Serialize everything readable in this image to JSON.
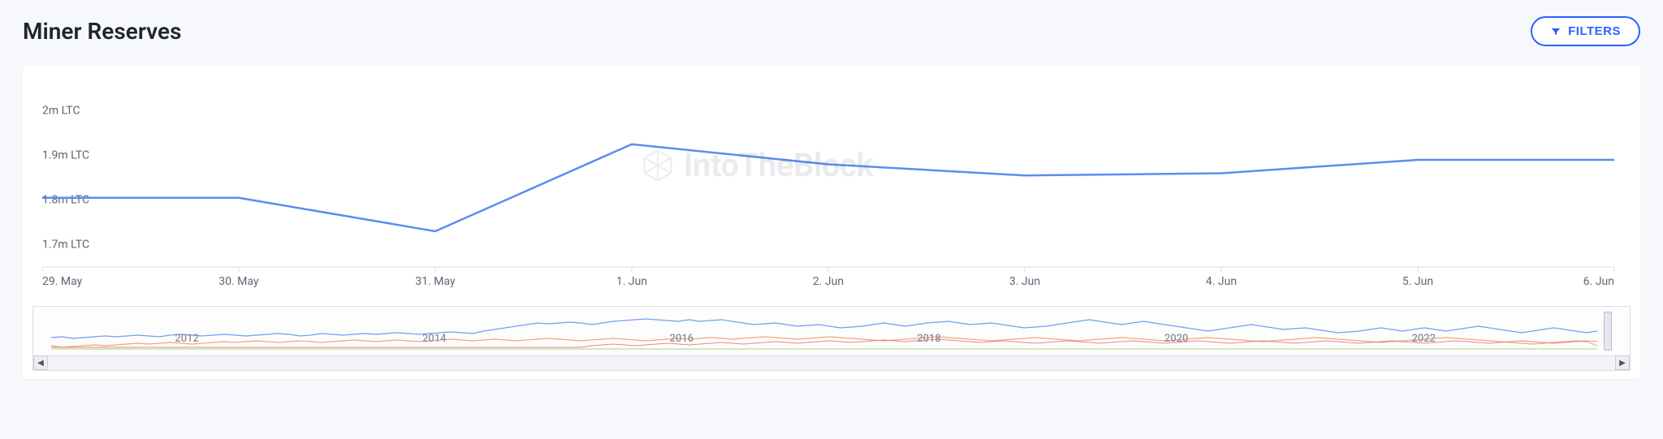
{
  "header": {
    "title": "Miner Reserves",
    "filters_label": "FILTERS"
  },
  "watermark": {
    "text": "IntoTheBlock"
  },
  "main_chart": {
    "type": "line",
    "background_color": "#ffffff",
    "grid_color": "#dcdfe6",
    "line_color": "#5b8def",
    "line_width": 2.5,
    "x_categories": [
      "29. May",
      "30. May",
      "31. May",
      "1. Jun",
      "2. Jun",
      "3. Jun",
      "4. Jun",
      "5. Jun",
      "6. Jun"
    ],
    "y_ticks": [
      "1.7m LTC",
      "1.8m LTC",
      "1.9m LTC",
      "2m LTC"
    ],
    "ylim": [
      1.65,
      2.05
    ],
    "values": [
      1.805,
      1.805,
      1.73,
      1.925,
      1.88,
      1.855,
      1.86,
      1.89,
      1.89
    ],
    "label_fontsize": 14,
    "label_color": "#5d6675"
  },
  "navigator": {
    "type": "line",
    "background_color": "#fdfdfe",
    "border_color": "#d9dce3",
    "years": [
      "2012",
      "2014",
      "2016",
      "2018",
      "2020",
      "2022"
    ],
    "year_fontsize": 13,
    "year_color": "#8a8f9c",
    "series": [
      {
        "color": "#5b8def",
        "width": 1.2,
        "points": [
          38,
          37,
          39,
          38,
          37,
          36,
          37,
          36,
          35,
          36,
          37,
          35,
          34,
          35,
          36,
          35,
          34,
          35,
          36,
          35,
          34,
          33,
          34,
          36,
          35,
          33,
          34,
          35,
          34,
          33,
          34,
          33,
          32,
          33,
          34,
          33,
          32,
          31,
          32,
          33,
          30,
          28,
          26,
          24,
          22,
          20,
          21,
          20,
          19,
          20,
          22,
          20,
          18,
          17,
          16,
          15,
          16,
          17,
          18,
          16,
          18,
          17,
          16,
          18,
          20,
          22,
          21,
          20,
          22,
          24,
          23,
          22,
          24,
          26,
          25,
          24,
          22,
          20,
          22,
          24,
          22,
          20,
          19,
          18,
          20,
          22,
          21,
          20,
          22,
          24,
          26,
          25,
          24,
          22,
          20,
          18,
          16,
          18,
          20,
          22,
          20,
          18,
          20,
          22,
          24,
          26,
          28,
          30,
          28,
          26,
          24,
          22,
          24,
          26,
          28,
          27,
          26,
          28,
          30,
          32,
          31,
          30,
          28,
          26,
          28,
          30,
          28,
          26,
          28,
          30,
          28,
          26,
          24,
          26,
          28,
          30,
          32,
          30,
          28,
          26,
          28,
          30,
          32,
          30
        ]
      },
      {
        "color": "#f0995e",
        "width": 1.2,
        "points": [
          48,
          50,
          49,
          48,
          47,
          48,
          47,
          46,
          45,
          46,
          45,
          44,
          45,
          46,
          45,
          44,
          43,
          44,
          43,
          42,
          43,
          44,
          43,
          42,
          43,
          44,
          43,
          42,
          41,
          42,
          43,
          42,
          41,
          42,
          43,
          42,
          41,
          40,
          41,
          42,
          41,
          40,
          41,
          42,
          41,
          40,
          39,
          40,
          41,
          42,
          41,
          40,
          39,
          40,
          41,
          42,
          41,
          40,
          39,
          40,
          39,
          38,
          39,
          40,
          39,
          38,
          37,
          38,
          39,
          40,
          39,
          38,
          37,
          38,
          39,
          40,
          41,
          42,
          41,
          40,
          39,
          38,
          37,
          38,
          39,
          40,
          41,
          42,
          41,
          40,
          39,
          38,
          39,
          40,
          41,
          42,
          41,
          40,
          39,
          38,
          39,
          40,
          41,
          42,
          41,
          40,
          39,
          38,
          39,
          40,
          41,
          42,
          43,
          42,
          41,
          40,
          39,
          38,
          39,
          40,
          41,
          42,
          43,
          44,
          43,
          42,
          41,
          40,
          39,
          38,
          39,
          40,
          41,
          42,
          43,
          44,
          45,
          46,
          45,
          44,
          43,
          42,
          43,
          48
        ]
      },
      {
        "color": "#e57373",
        "width": 1.0,
        "points": [
          50,
          50,
          50,
          50,
          50,
          50,
          50,
          50,
          50,
          50,
          50,
          50,
          50,
          50,
          50,
          50,
          50,
          50,
          50,
          50,
          50,
          50,
          50,
          50,
          50,
          50,
          50,
          50,
          50,
          50,
          50,
          50,
          50,
          50,
          50,
          50,
          50,
          50,
          50,
          50,
          50,
          50,
          50,
          50,
          50,
          50,
          50,
          50,
          50,
          50,
          48,
          47,
          46,
          47,
          48,
          47,
          46,
          45,
          46,
          47,
          46,
          45,
          44,
          45,
          46,
          45,
          44,
          43,
          44,
          45,
          44,
          43,
          42,
          43,
          44,
          43,
          42,
          41,
          42,
          43,
          42,
          41,
          40,
          41,
          42,
          43,
          44,
          43,
          42,
          43,
          44,
          45,
          44,
          43,
          42,
          43,
          44,
          45,
          44,
          43,
          42,
          43,
          44,
          45,
          44,
          43,
          42,
          43,
          44,
          45,
          44,
          43,
          42,
          43,
          44,
          45,
          44,
          43,
          42,
          43,
          44,
          45,
          44,
          43,
          42,
          43,
          44,
          45,
          44,
          43,
          42,
          43,
          44,
          45,
          44,
          43,
          42,
          43,
          44,
          45,
          44,
          43,
          42,
          43
        ]
      },
      {
        "color": "#9ccc65",
        "width": 1.0,
        "points": [
          52,
          52,
          52,
          52,
          52,
          52,
          52,
          52,
          52,
          52,
          52,
          52,
          52,
          52,
          52,
          52,
          52,
          52,
          52,
          52,
          52,
          52,
          52,
          52,
          52,
          52,
          52,
          52,
          52,
          52,
          52,
          52,
          52,
          52,
          52,
          52,
          52,
          52,
          52,
          52,
          52,
          52,
          52,
          52,
          52,
          52,
          52,
          52,
          52,
          52,
          52,
          52,
          52,
          52,
          52,
          52,
          52,
          52,
          52,
          52,
          52,
          52,
          52,
          52,
          52,
          52,
          52,
          52,
          52,
          52,
          52,
          52,
          52,
          52,
          52,
          52,
          52,
          52,
          52,
          52,
          52,
          52,
          52,
          52,
          52,
          52,
          52,
          52,
          52,
          52,
          52,
          52,
          52,
          52,
          52,
          52,
          52,
          52,
          52,
          52,
          52,
          52,
          52,
          52,
          52,
          52,
          52,
          52,
          52,
          52,
          52,
          52,
          52,
          52,
          52,
          52,
          52,
          52,
          52,
          52,
          52,
          52,
          52,
          52,
          52,
          52,
          52,
          52,
          52,
          52,
          52,
          52,
          52,
          52,
          52,
          52,
          52,
          52,
          52,
          52,
          52,
          52,
          52,
          52
        ]
      }
    ],
    "scroll_icons": {
      "left": "◀",
      "right": "▶"
    }
  },
  "colors": {
    "page_bg": "#f7f8fc",
    "card_bg": "#ffffff",
    "accent": "#2962ff",
    "text_primary": "#1f2430",
    "text_muted": "#5d6675"
  }
}
